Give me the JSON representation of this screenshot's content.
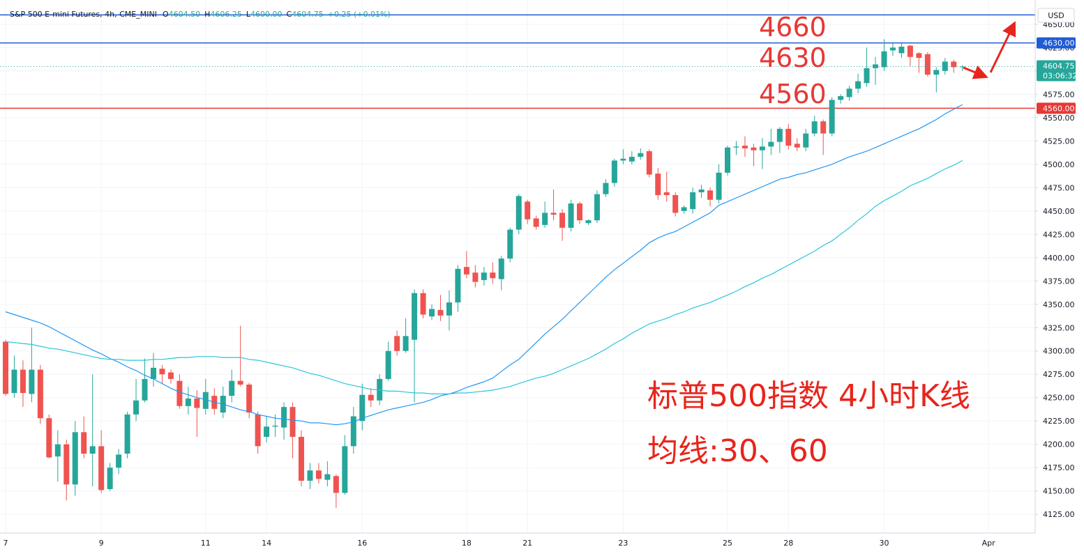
{
  "chart_data": {
    "type": "candlestick",
    "title": "S&P 500 E-mini Futures, 4h, CME_MINI",
    "ohlc_labels": [
      {
        "key": "O",
        "value": "4604.50"
      },
      {
        "key": "H",
        "value": "4606.25"
      },
      {
        "key": "L",
        "value": "4600.00"
      },
      {
        "key": "C",
        "value": "4604.75"
      }
    ],
    "change_label": "+0.25 (+0.01%)",
    "currency": "USD",
    "countdown": "03:06:32",
    "up_color": "#26a69a",
    "down_color": "#ef5350",
    "grid": true,
    "ylim": [
      4105,
      4676
    ],
    "yticks": [
      {
        "value": 4125,
        "label": "4125.00"
      },
      {
        "value": 4150,
        "label": "4150.00"
      },
      {
        "value": 4175,
        "label": "4175.00"
      },
      {
        "value": 4200,
        "label": "4200.00"
      },
      {
        "value": 4225,
        "label": "4225.00"
      },
      {
        "value": 4250,
        "label": "4250.00"
      },
      {
        "value": 4275,
        "label": "4275.00"
      },
      {
        "value": 4300,
        "label": "4300.00"
      },
      {
        "value": 4325,
        "label": "4325.00"
      },
      {
        "value": 4350,
        "label": "4350.00"
      },
      {
        "value": 4375,
        "label": "4375.00"
      },
      {
        "value": 4400,
        "label": "4400.00"
      },
      {
        "value": 4425,
        "label": "4425.00"
      },
      {
        "value": 4450,
        "label": "4450.00"
      },
      {
        "value": 4475,
        "label": "4475.00"
      },
      {
        "value": 4500,
        "label": "4500.00"
      },
      {
        "value": 4525,
        "label": "4525.00"
      },
      {
        "value": 4550,
        "label": "4550.00"
      },
      {
        "value": 4575,
        "label": "4575.00"
      },
      {
        "value": 4600,
        "label": "4600.00"
      },
      {
        "value": 4625,
        "label": "4625.00"
      },
      {
        "value": 4650,
        "label": "4650.00"
      }
    ],
    "categories": [
      "7",
      null,
      null,
      null,
      null,
      null,
      null,
      null,
      null,
      null,
      null,
      "9",
      null,
      null,
      null,
      null,
      null,
      null,
      null,
      null,
      null,
      null,
      null,
      "11",
      null,
      null,
      null,
      null,
      null,
      null,
      "14",
      null,
      null,
      null,
      null,
      null,
      null,
      null,
      null,
      null,
      null,
      "16",
      null,
      null,
      null,
      null,
      null,
      null,
      null,
      null,
      null,
      null,
      null,
      "18",
      null,
      null,
      null,
      null,
      null,
      null,
      "21",
      null,
      null,
      null,
      null,
      null,
      null,
      null,
      null,
      null,
      null,
      "23",
      null,
      null,
      null,
      null,
      null,
      null,
      null,
      null,
      null,
      null,
      null,
      "25",
      null,
      null,
      null,
      null,
      null,
      null,
      "28",
      null,
      null,
      null,
      null,
      null,
      null,
      null,
      null,
      null,
      null,
      "30",
      null,
      null,
      null,
      null,
      null,
      null,
      null,
      null,
      null,
      null,
      null,
      "Apr",
      null,
      null,
      null,
      null,
      null
    ],
    "open": [
      4310,
      4255,
      4280,
      4254,
      4280,
      4228,
      4187,
      4200,
      4157,
      4213,
      4190,
      4198,
      4152,
      4175,
      4190,
      4232,
      4247,
      4270,
      4281,
      4277,
      4268,
      4241,
      4249,
      4238,
      4252,
      4234,
      4252,
      4268,
      4264,
      4232,
      4208,
      4219,
      4218,
      4240,
      4208,
      4161,
      4172,
      4162,
      4166,
      4148,
      4198,
      4225,
      4253,
      4247,
      4270,
      4316,
      4300,
      4312,
      4362,
      4337,
      4344,
      4338,
      4352,
      4390,
      4384,
      4376,
      4384,
      4377,
      4399,
      4430,
      4460,
      4442,
      4435,
      4448,
      4448,
      4432,
      4458,
      4437,
      4440,
      4468,
      4480,
      4504,
      4503,
      4508,
      4514,
      4490,
      4470,
      4467,
      4450,
      4452,
      4470,
      4472,
      4462,
      4491,
      4518,
      4520,
      4518,
      4515,
      4519,
      4524,
      4538,
      4522,
      4518,
      4533,
      4546,
      4533,
      4569,
      4572,
      4581,
      4587,
      4603,
      4604,
      4622,
      4619,
      4627,
      4619,
      4618,
      4596,
      4600,
      4610,
      4604.5,
      null,
      null,
      null,
      null,
      null,
      null,
      null,
      null
    ],
    "high": [
      4312,
      4295,
      4290,
      4325,
      4285,
      4232,
      4215,
      4205,
      4225,
      4230,
      4275,
      4215,
      4180,
      4195,
      4235,
      4270,
      4292,
      4298,
      4285,
      4280,
      4275,
      4262,
      4258,
      4270,
      4260,
      4262,
      4280,
      4327,
      4266,
      4235,
      4230,
      4232,
      4245,
      4245,
      4215,
      4180,
      4180,
      4182,
      4168,
      4210,
      4240,
      4265,
      4260,
      4275,
      4310,
      4322,
      4335,
      4366,
      4366,
      4350,
      4360,
      4365,
      4392,
      4407,
      4392,
      4390,
      4395,
      4402,
      4432,
      4468,
      4462,
      4445,
      4460,
      4473,
      4452,
      4462,
      4460,
      4441,
      4472,
      4484,
      4506,
      4516,
      4514,
      4517,
      4516,
      4496,
      4492,
      4470,
      4456,
      4475,
      4478,
      4475,
      4500,
      4520,
      4525,
      4530,
      4522,
      4528,
      4538,
      4540,
      4543,
      4528,
      4538,
      4552,
      4548,
      4572,
      4575,
      4584,
      4597,
      4625,
      4615,
      4634,
      4631,
      4631,
      4628,
      4620,
      4620,
      4604,
      4614,
      4612,
      4606.25,
      null,
      null,
      null,
      null,
      null,
      null,
      null,
      null
    ],
    "low": [
      4252,
      4250,
      4240,
      4245,
      4222,
      4185,
      4160,
      4140,
      4145,
      4185,
      4155,
      4148,
      4150,
      4168,
      4185,
      4225,
      4245,
      4262,
      4265,
      4265,
      4238,
      4232,
      4208,
      4232,
      4232,
      4228,
      4245,
      4262,
      4228,
      4190,
      4202,
      4208,
      4205,
      4185,
      4155,
      4152,
      4158,
      4155,
      4132,
      4146,
      4190,
      4215,
      4240,
      4242,
      4268,
      4295,
      4298,
      4245,
      4335,
      4333,
      4332,
      4322,
      4342,
      4378,
      4368,
      4370,
      4372,
      4365,
      4395,
      4425,
      4436,
      4430,
      4432,
      4440,
      4418,
      4428,
      4436,
      4435,
      4437,
      4465,
      4476,
      4500,
      4500,
      4505,
      4486,
      4462,
      4460,
      4444,
      4447,
      4447,
      4464,
      4455,
      4458,
      4488,
      4510,
      4508,
      4498,
      4495,
      4510,
      4512,
      4516,
      4514,
      4514,
      4530,
      4510,
      4530,
      4565,
      4568,
      4576,
      4583,
      4585,
      4600,
      4616,
      4614,
      4605,
      4598,
      4594,
      4577,
      4596,
      4598,
      4600,
      null,
      null,
      null,
      null,
      null,
      null,
      null,
      null
    ],
    "close": [
      4254,
      4280,
      4255,
      4280,
      4228,
      4186,
      4200,
      4157,
      4213,
      4190,
      4198,
      4151,
      4175,
      4189,
      4232,
      4247,
      4270,
      4282,
      4275,
      4270,
      4241,
      4249,
      4239,
      4256,
      4238,
      4252,
      4268,
      4264,
      4234,
      4198,
      4219,
      4220,
      4240,
      4208,
      4161,
      4172,
      4163,
      4168,
      4148,
      4198,
      4230,
      4253,
      4247,
      4270,
      4300,
      4300,
      4316,
      4362,
      4339,
      4345,
      4338,
      4352,
      4388,
      4382,
      4374,
      4384,
      4378,
      4399,
      4430,
      4466,
      4441,
      4433,
      4448,
      4446,
      4432,
      4458,
      4440,
      4440,
      4468,
      4480,
      4504,
      4506,
      4508,
      4512,
      4489,
      4467,
      4467,
      4448,
      4454,
      4470,
      4473,
      4462,
      4491,
      4518,
      4519,
      4517,
      4515,
      4519,
      4524,
      4538,
      4520,
      4518,
      4533,
      4546,
      4533,
      4569,
      4573,
      4581,
      4589,
      4603,
      4607,
      4621,
      4625,
      4626,
      4615,
      4614,
      4596,
      4601,
      4610,
      4604,
      4604.75,
      null,
      null,
      null,
      null,
      null,
      null,
      null,
      null
    ],
    "series": [
      {
        "color": "#2196f3",
        "values": [
          4342,
          4339,
          4336,
          4333,
          4330,
          4326,
          4321,
          4316,
          4311,
          4306,
          4301,
          4297,
          4292,
          4288,
          4283,
          4279,
          4274,
          4270,
          4265,
          4260,
          4256,
          4253,
          4250,
          4248,
          4245,
          4243,
          4240,
          4237,
          4235,
          4232,
          4230,
          4228,
          4227,
          4226,
          4225,
          4223,
          4223,
          4222,
          4221,
          4222,
          4224,
          4228,
          4231,
          4234,
          4237,
          4239,
          4241,
          4243,
          4245,
          4248,
          4252,
          4254,
          4257,
          4261,
          4264,
          4267,
          4271,
          4278,
          4285,
          4291,
          4300,
          4309,
          4318,
          4326,
          4334,
          4343,
          4352,
          4361,
          4370,
          4379,
          4387,
          4394,
          4401,
          4408,
          4416,
          4421,
          4425,
          4428,
          4433,
          4438,
          4443,
          4448,
          4456,
          4460,
          4464,
          4468,
          4472,
          4476,
          4480,
          4484,
          4486,
          4489,
          4491,
          4494,
          4497,
          4500,
          4504,
          4508,
          4511,
          4514,
          4518,
          4522,
          4526,
          4530,
          4534,
          4538,
          4543,
          4548,
          4554,
          4559,
          4564,
          null,
          null,
          null,
          null,
          null,
          null,
          null,
          null
        ]
      },
      {
        "color": "#26c6da",
        "values": [
          4310,
          4309,
          4308,
          4307,
          4305,
          4303,
          4302,
          4300,
          4298,
          4296,
          4294,
          4292,
          4291,
          4291,
          4290,
          4290,
          4290,
          4291,
          4291,
          4292,
          4293,
          4293,
          4294,
          4294,
          4294,
          4293,
          4293,
          4293,
          4291,
          4290,
          4288,
          4286,
          4284,
          4282,
          4279,
          4276,
          4274,
          4271,
          4268,
          4265,
          4263,
          4261,
          4259,
          4258,
          4257,
          4257,
          4256,
          4255,
          4255,
          4254,
          4254,
          4254,
          4255,
          4255,
          4256,
          4257,
          4258,
          4260,
          4262,
          4265,
          4268,
          4271,
          4273,
          4276,
          4280,
          4284,
          4288,
          4292,
          4297,
          4302,
          4308,
          4313,
          4319,
          4324,
          4329,
          4332,
          4335,
          4339,
          4342,
          4346,
          4349,
          4352,
          4356,
          4360,
          4364,
          4369,
          4373,
          4378,
          4382,
          4387,
          4392,
          4397,
          4402,
          4407,
          4413,
          4418,
          4425,
          4432,
          4440,
          4447,
          4455,
          4461,
          4466,
          4471,
          4477,
          4481,
          4485,
          4490,
          4495,
          4499,
          4504,
          null,
          null,
          null,
          null,
          null,
          null,
          null,
          null
        ]
      }
    ],
    "levels": [
      {
        "value": 4660,
        "label": "4660",
        "color": "#1e5bd6"
      },
      {
        "value": 4630,
        "label": "4630",
        "axis_label": "4630.00",
        "color": "#1e5bd6"
      },
      {
        "value": 4560,
        "label": "4560",
        "axis_label": "4560.00",
        "color": "#e53935"
      }
    ],
    "annotations": [
      "标普500指数 4小时K线",
      "均线:30、60"
    ]
  }
}
